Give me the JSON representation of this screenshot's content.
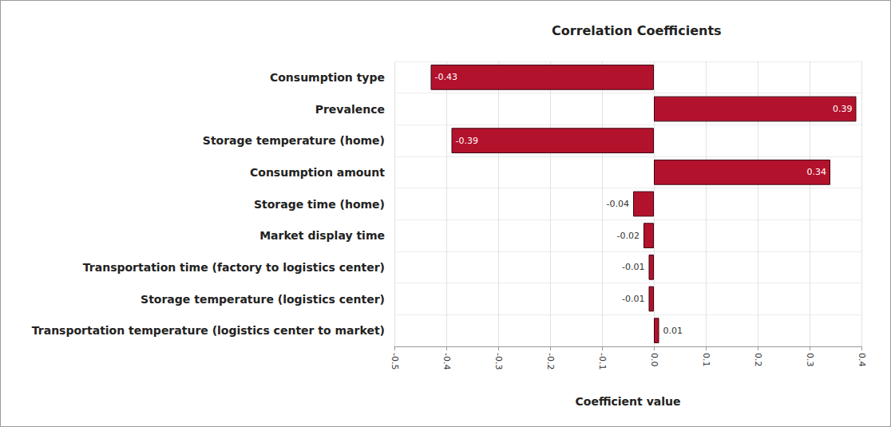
{
  "chart_data": {
    "type": "bar",
    "title": "Correlation Coefficients",
    "x_label": "Coefficient value",
    "orientation": "horizontal",
    "categories": [
      "Consumption type",
      "Prevalence",
      "Storage temperature (home)",
      "Consumption amount",
      "Storage time (home)",
      "Market display time",
      "Transportation time (factory to logistics center)",
      "Storage temperature (logistics center)",
      "Transportation temperature (logistics center to market)"
    ],
    "values": [
      -0.43,
      0.39,
      -0.39,
      0.34,
      -0.04,
      -0.02,
      -0.01,
      -0.01,
      0.01
    ],
    "color": "#b3122d",
    "xlim": [
      -0.5,
      0.4
    ],
    "xticks": [
      -0.5,
      -0.4,
      -0.3,
      -0.2,
      -0.1,
      {
        "value": 0,
        "label": "0.0"
      },
      0.1,
      0.2,
      0.3,
      0.4
    ],
    "grid": true,
    "data_labels": true
  }
}
